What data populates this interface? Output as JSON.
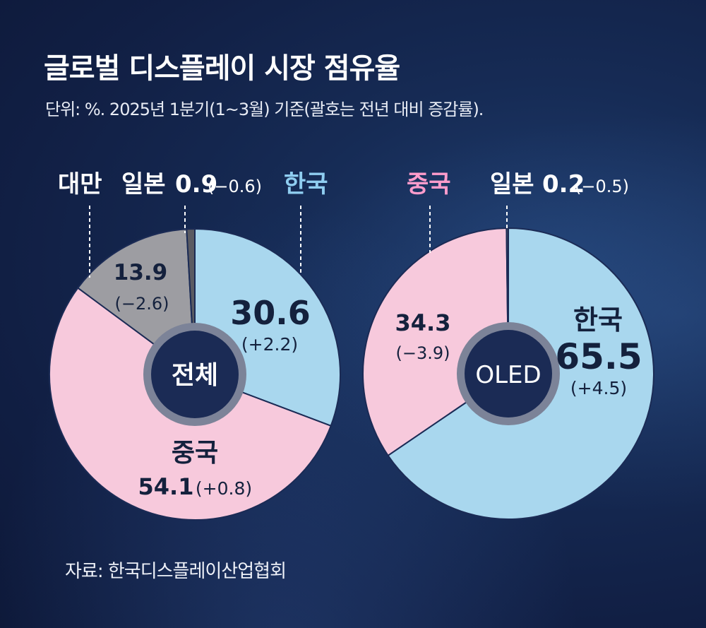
{
  "title": "글로벌 디스플레이 시장 점유율",
  "subtitle": "단위: %. 2025년 1분기(1~3월) 기준(괄호는 전년 대비 증감률).",
  "source": "자료: 한국디스플레이산업협회",
  "colors": {
    "korea": "#a9d7ee",
    "china": "#f7c9dc",
    "taiwan": "#9d9da2",
    "japan": "#5b5b62",
    "center": "#1b2b55",
    "ring": "#7c8398",
    "korea_label": "#8fcdf0",
    "china_label": "#ff9ccc",
    "outline": "#1b2b55"
  },
  "chart_data": [
    {
      "type": "pie",
      "center_label": "전체",
      "slices": [
        {
          "name": "한국",
          "value": 30.6,
          "change": "(+2.2)"
        },
        {
          "name": "중국",
          "value": 54.1,
          "change": "(+0.8)"
        },
        {
          "name": "대만",
          "value": 13.9,
          "change": "(−2.6)"
        },
        {
          "name": "일본",
          "value": 0.9,
          "change": "(−0.6)"
        }
      ]
    },
    {
      "type": "pie",
      "center_label": "OLED",
      "slices": [
        {
          "name": "한국",
          "value": 65.5,
          "change": "(+4.5)"
        },
        {
          "name": "중국",
          "value": 34.3,
          "change": "(−3.9)"
        },
        {
          "name": "일본",
          "value": 0.2,
          "change": "(−0.5)"
        }
      ]
    }
  ]
}
